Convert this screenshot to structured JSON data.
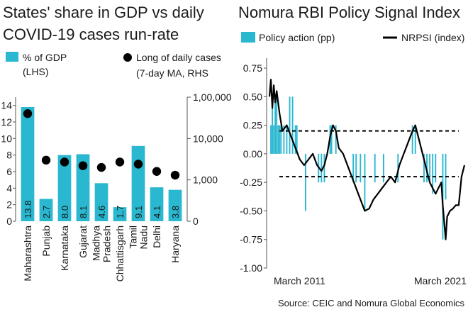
{
  "left": {
    "title_line1": "States' share in GDP vs daily",
    "title_line2": "COVID-19 cases run-rate",
    "legend_bar_line1": "% of GDP",
    "legend_bar_line2": "(LHS)",
    "legend_dot_line1": "Long of daily cases",
    "legend_dot_line2": "(7-day MA, RHS",
    "colors": {
      "bar": "#2ab7d0",
      "dot": "#000000",
      "label": "#1a1a1a"
    }
  },
  "right": {
    "title": "Nomura RBI Policy Signal Index",
    "legend_bar": "Policy action (pp)",
    "legend_line": "NRPSI (index)",
    "x_label_start": "March 2011",
    "x_label_end": "March 2021",
    "colors": {
      "bar": "#2ab7d0",
      "line": "#000000",
      "ref": "#000000"
    }
  },
  "source": "Source: CEIC and Nomura Global Economics",
  "chart_data": [
    {
      "type": "bar",
      "categories": [
        "Maharashtra",
        "Punjab",
        "Karnataka",
        "Gujarat",
        "Madhya Pradesh",
        "Chhattisgarh",
        "Tamil Nadu",
        "Delhi",
        "Haryana"
      ],
      "series": [
        {
          "name": "% of GDP (LHS)",
          "values": [
            13.8,
            2.7,
            8.0,
            8.1,
            4.6,
            1.7,
            9.1,
            4.1,
            3.8
          ]
        },
        {
          "name": "Long of daily cases (7-day MA, RHS",
          "axis": "right",
          "scale": "log",
          "values": [
            40000,
            3000,
            2700,
            2200,
            2000,
            2700,
            2400,
            1600,
            1300
          ]
        }
      ],
      "value_labels": [
        "13.8",
        "2.7",
        "8.0",
        "8.1",
        "4.6",
        "1.7",
        "9.1",
        "4.1",
        "3.8"
      ],
      "ylim": [
        0,
        15
      ],
      "yticks": [
        0,
        2,
        4,
        6,
        8,
        10,
        12,
        14
      ],
      "y2lim": [
        100,
        100000
      ],
      "y2ticks": [
        100,
        1000,
        10000,
        100000
      ],
      "y2ticklabels": [
        "0",
        "1,000",
        "10,000",
        "1,00,000"
      ]
    },
    {
      "type": "bar+line",
      "ylim": [
        -1.0,
        0.8
      ],
      "yticks": [
        -1.0,
        -0.75,
        -0.5,
        -0.25,
        0.0,
        0.25,
        0.5,
        0.75
      ],
      "yticklabels": [
        "-1.00",
        "-0.75",
        "-0.50",
        "-0.25",
        "0.00",
        "0.25",
        "0.50",
        "0.75"
      ],
      "reference_lines": [
        0.2,
        -0.2
      ],
      "x_start": "2010-03",
      "x_end": "2021-06",
      "policy_action_pp": [
        {
          "x": "2010-04",
          "y": 0.25
        },
        {
          "x": "2010-05",
          "y": 0.5
        },
        {
          "x": "2010-06",
          "y": 0.25
        },
        {
          "x": "2010-07",
          "y": 0.5
        },
        {
          "x": "2010-08",
          "y": 0.5
        },
        {
          "x": "2010-09",
          "y": 0.25
        },
        {
          "x": "2010-10",
          "y": 0.25
        },
        {
          "x": "2010-11",
          "y": 0.25
        },
        {
          "x": "2011-01",
          "y": 0.25
        },
        {
          "x": "2011-03",
          "y": 0.25
        },
        {
          "x": "2011-05",
          "y": 0.5
        },
        {
          "x": "2011-07",
          "y": 0.5
        },
        {
          "x": "2011-09",
          "y": 0.25
        },
        {
          "x": "2011-10",
          "y": 0.25
        },
        {
          "x": "2012-04",
          "y": -0.5
        },
        {
          "x": "2013-01",
          "y": -0.25
        },
        {
          "x": "2013-03",
          "y": -0.25
        },
        {
          "x": "2013-05",
          "y": -0.25
        },
        {
          "x": "2013-09",
          "y": 0.25
        },
        {
          "x": "2013-10",
          "y": 0.25
        },
        {
          "x": "2014-01",
          "y": 0.25
        },
        {
          "x": "2015-01",
          "y": -0.25
        },
        {
          "x": "2015-03",
          "y": -0.25
        },
        {
          "x": "2015-06",
          "y": -0.25
        },
        {
          "x": "2015-09",
          "y": -0.5
        },
        {
          "x": "2016-04",
          "y": -0.25
        },
        {
          "x": "2016-10",
          "y": -0.25
        },
        {
          "x": "2017-08",
          "y": -0.25
        },
        {
          "x": "2018-06",
          "y": 0.25
        },
        {
          "x": "2018-08",
          "y": 0.25
        },
        {
          "x": "2019-02",
          "y": -0.25
        },
        {
          "x": "2019-04",
          "y": -0.25
        },
        {
          "x": "2019-06",
          "y": -0.25
        },
        {
          "x": "2019-08",
          "y": -0.35
        },
        {
          "x": "2019-10",
          "y": -0.25
        },
        {
          "x": "2020-03",
          "y": -0.75
        },
        {
          "x": "2020-05",
          "y": -0.4
        }
      ],
      "nrpsi_index": [
        {
          "x": "2010-03",
          "y": 0.5
        },
        {
          "x": "2010-04",
          "y": 0.65
        },
        {
          "x": "2010-05",
          "y": 0.4
        },
        {
          "x": "2010-06",
          "y": 0.6
        },
        {
          "x": "2010-07",
          "y": 0.45
        },
        {
          "x": "2010-08",
          "y": 0.55
        },
        {
          "x": "2010-10",
          "y": 0.35
        },
        {
          "x": "2010-12",
          "y": 0.2
        },
        {
          "x": "2011-03",
          "y": 0.25
        },
        {
          "x": "2011-06",
          "y": 0.15
        },
        {
          "x": "2011-09",
          "y": 0.05
        },
        {
          "x": "2011-12",
          "y": -0.05
        },
        {
          "x": "2012-03",
          "y": -0.1
        },
        {
          "x": "2012-06",
          "y": -0.05
        },
        {
          "x": "2012-09",
          "y": 0.0
        },
        {
          "x": "2012-12",
          "y": -0.1
        },
        {
          "x": "2013-03",
          "y": -0.15
        },
        {
          "x": "2013-05",
          "y": -0.1
        },
        {
          "x": "2013-07",
          "y": 0.0
        },
        {
          "x": "2013-09",
          "y": 0.15
        },
        {
          "x": "2013-11",
          "y": 0.25
        },
        {
          "x": "2014-01",
          "y": 0.2
        },
        {
          "x": "2014-03",
          "y": 0.05
        },
        {
          "x": "2014-06",
          "y": 0.0
        },
        {
          "x": "2014-09",
          "y": -0.1
        },
        {
          "x": "2014-12",
          "y": -0.2
        },
        {
          "x": "2015-03",
          "y": -0.3
        },
        {
          "x": "2015-06",
          "y": -0.4
        },
        {
          "x": "2015-09",
          "y": -0.5
        },
        {
          "x": "2015-12",
          "y": -0.48
        },
        {
          "x": "2016-03",
          "y": -0.4
        },
        {
          "x": "2016-06",
          "y": -0.35
        },
        {
          "x": "2016-09",
          "y": -0.3
        },
        {
          "x": "2016-12",
          "y": -0.25
        },
        {
          "x": "2017-03",
          "y": -0.2
        },
        {
          "x": "2017-06",
          "y": -0.25
        },
        {
          "x": "2017-09",
          "y": -0.1
        },
        {
          "x": "2017-12",
          "y": 0.0
        },
        {
          "x": "2018-03",
          "y": 0.1
        },
        {
          "x": "2018-06",
          "y": 0.2
        },
        {
          "x": "2018-08",
          "y": 0.25
        },
        {
          "x": "2018-10",
          "y": 0.15
        },
        {
          "x": "2018-12",
          "y": 0.05
        },
        {
          "x": "2019-02",
          "y": -0.05
        },
        {
          "x": "2019-04",
          "y": -0.15
        },
        {
          "x": "2019-06",
          "y": -0.25
        },
        {
          "x": "2019-08",
          "y": -0.3
        },
        {
          "x": "2019-10",
          "y": -0.35
        },
        {
          "x": "2019-12",
          "y": -0.3
        },
        {
          "x": "2020-02",
          "y": -0.25
        },
        {
          "x": "2020-03",
          "y": -0.45
        },
        {
          "x": "2020-04",
          "y": -0.6
        },
        {
          "x": "2020-05",
          "y": -0.75
        },
        {
          "x": "2020-06",
          "y": -0.55
        },
        {
          "x": "2020-08",
          "y": -0.5
        },
        {
          "x": "2020-10",
          "y": -0.48
        },
        {
          "x": "2020-12",
          "y": -0.45
        },
        {
          "x": "2021-02",
          "y": -0.45
        },
        {
          "x": "2021-04",
          "y": -0.2
        },
        {
          "x": "2021-06",
          "y": -0.1
        }
      ]
    }
  ]
}
